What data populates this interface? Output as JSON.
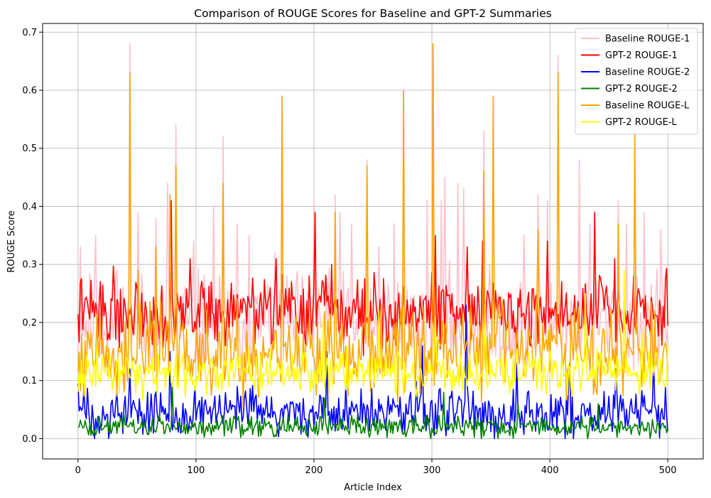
{
  "chart_data": {
    "type": "line",
    "title": "Comparison of ROUGE Scores for Baseline and GPT-2 Summaries",
    "xlabel": "Article Index",
    "ylabel": "ROUGE Score",
    "xlim": [
      -30,
      530
    ],
    "ylim": [
      -0.035,
      0.715
    ],
    "xticks": [
      0,
      100,
      200,
      300,
      400,
      500
    ],
    "yticks": [
      0.0,
      0.1,
      0.2,
      0.3,
      0.4,
      0.5,
      0.6,
      0.7
    ],
    "ytick_labels": [
      "0.0",
      "0.1",
      "0.2",
      "0.3",
      "0.4",
      "0.5",
      "0.6",
      "0.7"
    ],
    "grid": true,
    "legend_position": "top-right",
    "n_points": 501,
    "series": [
      {
        "name": "Baseline ROUGE-1",
        "color": "#ffc0cb",
        "base": 0.2,
        "amp": 0.07,
        "min": 0.02,
        "max": 0.7,
        "seed": 11,
        "spikes": [
          [
            2,
            0.33
          ],
          [
            15,
            0.35
          ],
          [
            33,
            0.29
          ],
          [
            44,
            0.68
          ],
          [
            51,
            0.39
          ],
          [
            66,
            0.38
          ],
          [
            76,
            0.44
          ],
          [
            83,
            0.54
          ],
          [
            98,
            0.34
          ],
          [
            115,
            0.4
          ],
          [
            123,
            0.52
          ],
          [
            135,
            0.37
          ],
          [
            145,
            0.35
          ],
          [
            173,
            0.59
          ],
          [
            200,
            0.41
          ],
          [
            218,
            0.42
          ],
          [
            222,
            0.39
          ],
          [
            232,
            0.37
          ],
          [
            245,
            0.48
          ],
          [
            255,
            0.33
          ],
          [
            268,
            0.37
          ],
          [
            276,
            0.6
          ],
          [
            296,
            0.41
          ],
          [
            301,
            0.68
          ],
          [
            308,
            0.41
          ],
          [
            311,
            0.45
          ],
          [
            322,
            0.44
          ],
          [
            327,
            0.43
          ],
          [
            344,
            0.53
          ],
          [
            352,
            0.58
          ],
          [
            378,
            0.35
          ],
          [
            390,
            0.42
          ],
          [
            398,
            0.41
          ],
          [
            407,
            0.66
          ],
          [
            425,
            0.48
          ],
          [
            434,
            0.37
          ],
          [
            458,
            0.41
          ],
          [
            465,
            0.37
          ],
          [
            472,
            0.53
          ],
          [
            480,
            0.39
          ],
          [
            494,
            0.36
          ]
        ]
      },
      {
        "name": "GPT-2 ROUGE-1",
        "color": "#ff0000",
        "base": 0.22,
        "amp": 0.05,
        "min": 0.08,
        "max": 0.41,
        "seed": 22,
        "spikes": [
          [
            79,
            0.41
          ],
          [
            95,
            0.31
          ],
          [
            168,
            0.31
          ],
          [
            201,
            0.39
          ],
          [
            215,
            0.3
          ],
          [
            303,
            0.35
          ],
          [
            330,
            0.33
          ],
          [
            343,
            0.34
          ],
          [
            398,
            0.34
          ],
          [
            438,
            0.39
          ],
          [
            455,
            0.31
          ]
        ]
      },
      {
        "name": "Baseline ROUGE-2",
        "color": "#0000ff",
        "base": 0.045,
        "amp": 0.035,
        "min": 0.0,
        "max": 0.24,
        "seed": 33,
        "spikes": [
          [
            0,
            0.095
          ],
          [
            44,
            0.12
          ],
          [
            78,
            0.15
          ],
          [
            211,
            0.15
          ],
          [
            292,
            0.16
          ],
          [
            329,
            0.23
          ],
          [
            372,
            0.13
          ],
          [
            417,
            0.13
          ],
          [
            456,
            0.12
          ],
          [
            488,
            0.14
          ]
        ]
      },
      {
        "name": "GPT-2 ROUGE-2",
        "color": "#008000",
        "base": 0.02,
        "amp": 0.015,
        "min": 0.0,
        "max": 0.1,
        "seed": 44,
        "spikes": [
          [
            80,
            0.09
          ],
          [
            209,
            0.07
          ],
          [
            310,
            0.08
          ],
          [
            373,
            0.06
          ],
          [
            441,
            0.06
          ]
        ]
      },
      {
        "name": "Baseline ROUGE-L",
        "color": "#ffa500",
        "base": 0.15,
        "amp": 0.06,
        "min": 0.0,
        "max": 0.69,
        "seed": 55,
        "spikes": [
          [
            44,
            0.63
          ],
          [
            51,
            0.29
          ],
          [
            66,
            0.33
          ],
          [
            78,
            0.42
          ],
          [
            83,
            0.47
          ],
          [
            123,
            0.44
          ],
          [
            173,
            0.59
          ],
          [
            218,
            0.39
          ],
          [
            245,
            0.47
          ],
          [
            276,
            0.6
          ],
          [
            301,
            0.68
          ],
          [
            344,
            0.46
          ],
          [
            352,
            0.59
          ],
          [
            390,
            0.36
          ],
          [
            407,
            0.63
          ],
          [
            458,
            0.37
          ],
          [
            472,
            0.53
          ]
        ]
      },
      {
        "name": "GPT-2 ROUGE-L",
        "color": "#ffff00",
        "base": 0.115,
        "amp": 0.03,
        "min": 0.0,
        "max": 0.29,
        "seed": 66,
        "spikes": [
          [
            208,
            0.21
          ],
          [
            255,
            0.22
          ],
          [
            303,
            0.21
          ],
          [
            345,
            0.23
          ],
          [
            430,
            0.25
          ],
          [
            463,
            0.29
          ],
          [
            478,
            0.18
          ]
        ]
      }
    ]
  }
}
